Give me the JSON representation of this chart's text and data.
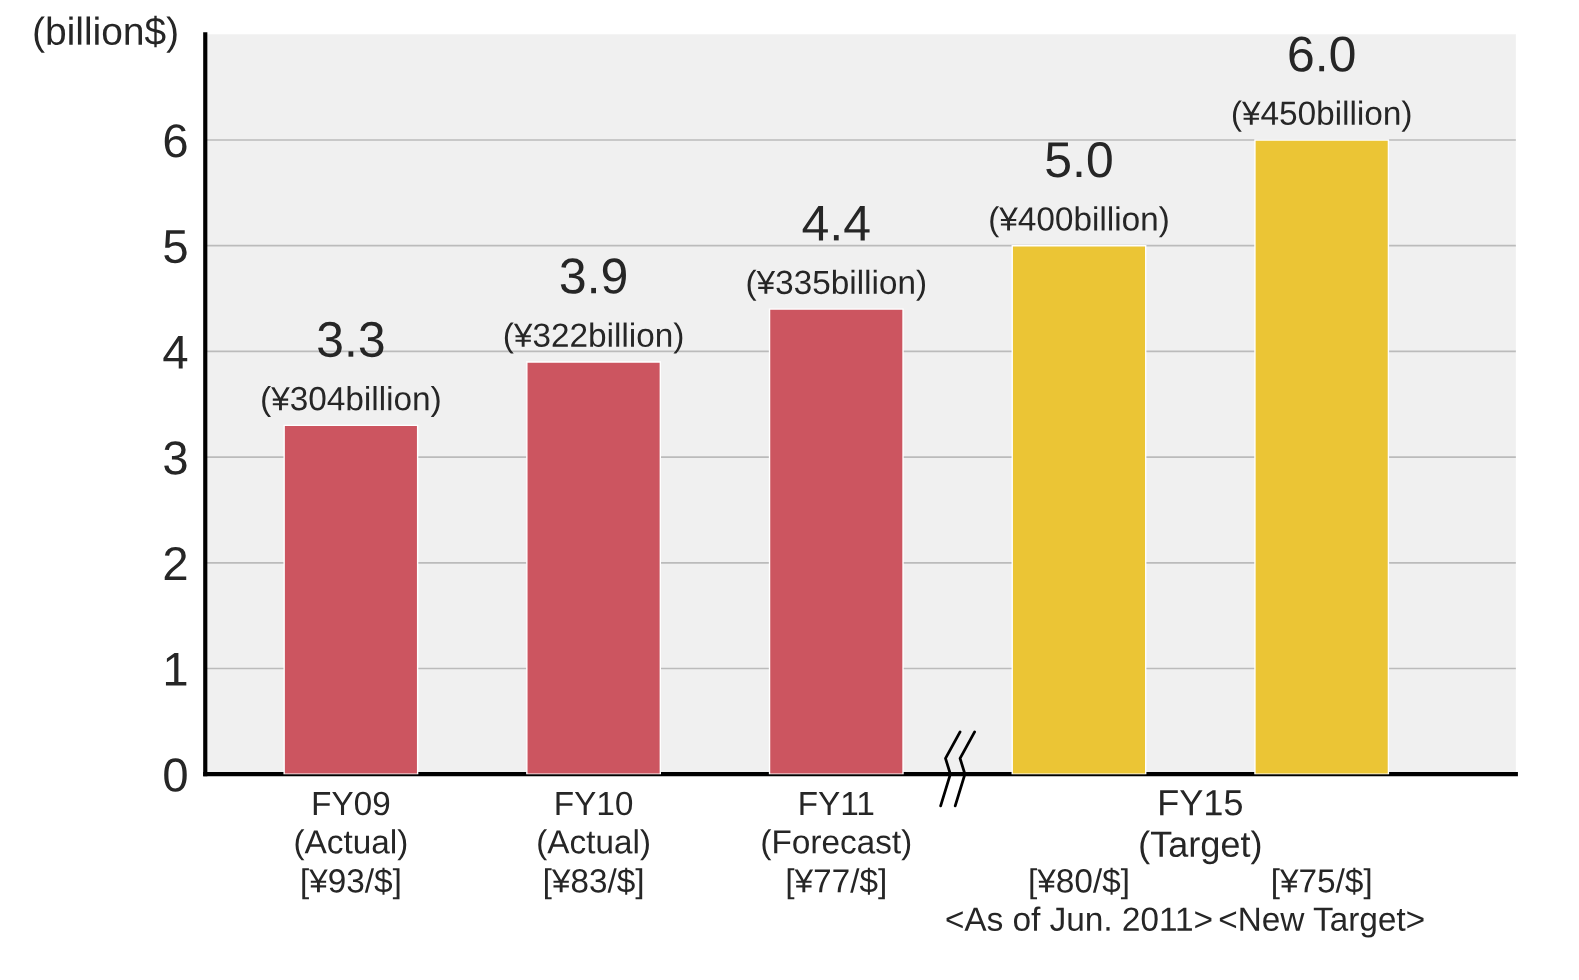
{
  "chart_data": {
    "type": "bar",
    "ylabel": "(billion$)",
    "categories": [
      "FY09\n(Actual)\n[¥93/$]",
      "FY10\n(Actual)\n[¥83/$]",
      "FY11\n(Forecast)\n[¥77/$]",
      "\n\n[¥80/$]\n<As of Jun. 2011>",
      "\n\n[¥75/$]\n<New Target>"
    ],
    "values": [
      3.3,
      3.9,
      4.4,
      5.0,
      6.0
    ],
    "colors": [
      "#cc5560",
      "#cc5560",
      "#cc5560",
      "#ebc535",
      "#ebc535"
    ],
    "value_labels": [
      "3.3\n(¥304billion)",
      "3.9\n(¥322billion)",
      "4.4\n(¥335billion)",
      "5.0\n(¥400billion)",
      "6.0\n(¥450billion)"
    ],
    "annotations": [
      "FY15\n(Target)"
    ],
    "ylim": [
      0,
      7
    ],
    "yticks": [
      0,
      1,
      2,
      3,
      4,
      5,
      6
    ],
    "grid": "y",
    "legend": false
  }
}
